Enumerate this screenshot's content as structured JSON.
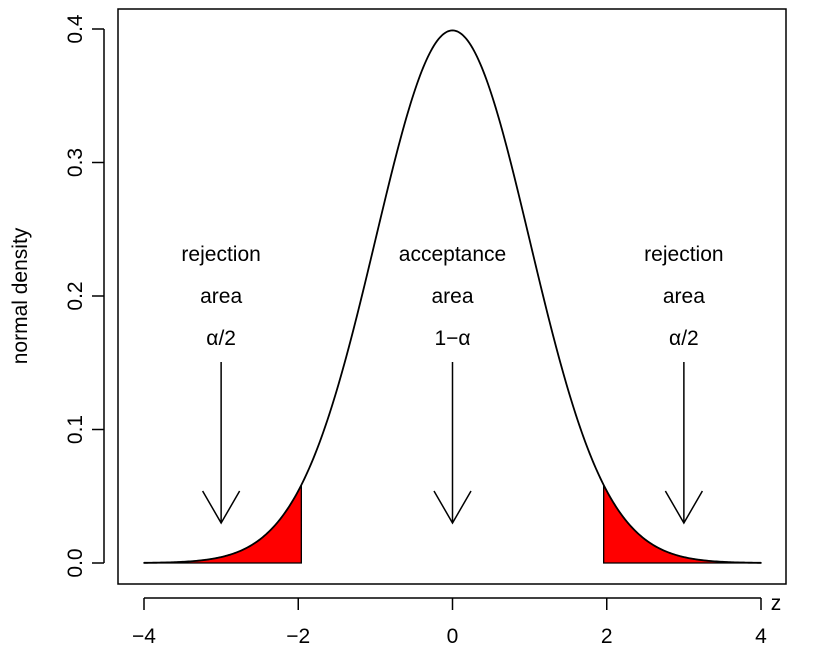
{
  "chart_data": {
    "type": "area",
    "title": "",
    "xlabel": "z",
    "ylabel": "normal density",
    "xlim": [
      -4,
      4
    ],
    "ylim": [
      0,
      0.4
    ],
    "x_ticks": [
      "−4",
      "−2",
      "0",
      "2",
      "4"
    ],
    "x_tick_values": [
      -4,
      -2,
      0,
      2,
      4
    ],
    "y_ticks": [
      "0.0",
      "0.1",
      "0.2",
      "0.3",
      "0.4"
    ],
    "y_tick_values": [
      0,
      0.1,
      0.2,
      0.3,
      0.4
    ],
    "grid": false,
    "series": [
      {
        "name": "standard normal density",
        "function": "dnorm",
        "mean": 0,
        "sd": 1,
        "x_range": [
          -4,
          4
        ],
        "color": "#000000"
      }
    ],
    "shaded_regions": [
      {
        "name": "left rejection tail",
        "x_range": [
          -4,
          -1.96
        ],
        "color": "#ff0000"
      },
      {
        "name": "right rejection tail",
        "x_range": [
          1.96,
          4
        ],
        "color": "#ff0000"
      }
    ],
    "annotations": [
      {
        "x": -3,
        "lines": [
          "rejection",
          "area",
          "α/2"
        ],
        "arrow_to_y": 0.026
      },
      {
        "x": 0,
        "lines": [
          "acceptance",
          "area",
          "1−α"
        ],
        "arrow_to_y": 0.026
      },
      {
        "x": 3,
        "lines": [
          "rejection",
          "area",
          "α/2"
        ],
        "arrow_to_y": 0.026
      }
    ]
  }
}
